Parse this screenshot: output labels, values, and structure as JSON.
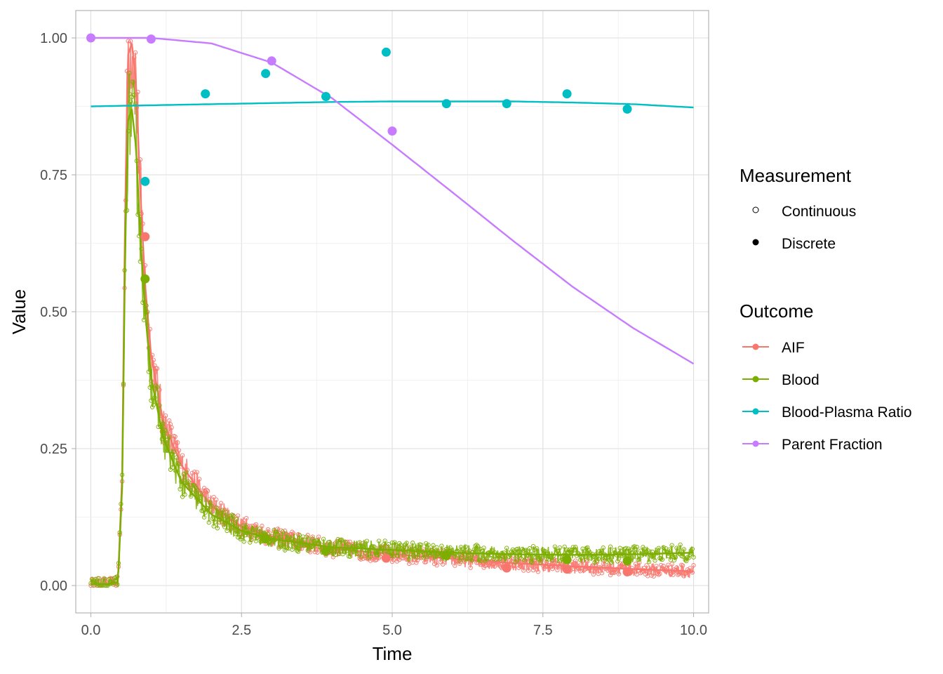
{
  "chart_data": {
    "type": "scatter",
    "xlabel": "Time",
    "ylabel": "Value",
    "xlim": [
      -0.25,
      10.25
    ],
    "ylim": [
      -0.05,
      1.05
    ],
    "x_ticks": [
      0,
      2.5,
      5,
      7.5,
      10
    ],
    "x_tick_labels": [
      "0.0",
      "2.5",
      "5.0",
      "7.5",
      "10.0"
    ],
    "y_ticks": [
      0,
      0.25,
      0.5,
      0.75,
      1
    ],
    "y_tick_labels": [
      "0.00",
      "0.25",
      "0.50",
      "0.75",
      "1.00"
    ],
    "grid": true,
    "legend_position": "right",
    "legends": {
      "measurement": {
        "title": "Measurement",
        "entries": [
          {
            "label": "Continuous",
            "shape": "open-circle"
          },
          {
            "label": "Discrete",
            "shape": "filled-circle"
          }
        ]
      },
      "outcome": {
        "title": "Outcome",
        "entries": [
          {
            "label": "AIF",
            "color": "#F8766D"
          },
          {
            "label": "Blood",
            "color": "#7CAE00"
          },
          {
            "label": "Blood-Plasma Ratio",
            "color": "#00BFC4"
          },
          {
            "label": "Parent Fraction",
            "color": "#C77CFF"
          }
        ]
      }
    },
    "series": [
      {
        "outcome": "AIF",
        "color": "#F8766D",
        "discrete_points": [
          {
            "x": 0.9,
            "y": 0.637
          },
          {
            "x": 4.9,
            "y": 0.05
          },
          {
            "x": 6.9,
            "y": 0.032
          },
          {
            "x": 7.9,
            "y": 0.03
          },
          {
            "x": 8.9,
            "y": 0.025
          }
        ],
        "continuous_curve": [
          [
            0.0,
            0.003
          ],
          [
            0.3,
            0.003
          ],
          [
            0.45,
            0.006
          ],
          [
            0.52,
            0.2
          ],
          [
            0.57,
            0.7
          ],
          [
            0.62,
            0.97
          ],
          [
            0.68,
            0.99
          ],
          [
            0.75,
            0.92
          ],
          [
            0.82,
            0.72
          ],
          [
            0.9,
            0.55
          ],
          [
            1.0,
            0.42
          ],
          [
            1.2,
            0.3
          ],
          [
            1.5,
            0.22
          ],
          [
            2.0,
            0.145
          ],
          [
            2.5,
            0.108
          ],
          [
            3.0,
            0.09
          ],
          [
            4.0,
            0.068
          ],
          [
            5.0,
            0.057
          ],
          [
            6.0,
            0.049
          ],
          [
            7.0,
            0.041
          ],
          [
            8.0,
            0.035
          ],
          [
            9.0,
            0.03
          ],
          [
            10.0,
            0.026
          ]
        ]
      },
      {
        "outcome": "Blood",
        "color": "#7CAE00",
        "discrete_points": [
          {
            "x": 0.9,
            "y": 0.56
          },
          {
            "x": 2.9,
            "y": 0.085
          },
          {
            "x": 3.9,
            "y": 0.063
          },
          {
            "x": 5.9,
            "y": 0.055
          },
          {
            "x": 7.9,
            "y": 0.047
          },
          {
            "x": 8.9,
            "y": 0.045
          }
        ],
        "continuous_curve": [
          [
            0.0,
            0.003
          ],
          [
            0.3,
            0.003
          ],
          [
            0.45,
            0.006
          ],
          [
            0.52,
            0.18
          ],
          [
            0.57,
            0.62
          ],
          [
            0.62,
            0.85
          ],
          [
            0.68,
            0.87
          ],
          [
            0.75,
            0.8
          ],
          [
            0.82,
            0.64
          ],
          [
            0.9,
            0.5
          ],
          [
            1.0,
            0.38
          ],
          [
            1.2,
            0.27
          ],
          [
            1.5,
            0.19
          ],
          [
            2.0,
            0.13
          ],
          [
            2.5,
            0.1
          ],
          [
            3.0,
            0.085
          ],
          [
            4.0,
            0.07
          ],
          [
            5.0,
            0.065
          ],
          [
            6.0,
            0.06
          ],
          [
            7.0,
            0.057
          ],
          [
            8.0,
            0.056
          ],
          [
            9.0,
            0.057
          ],
          [
            10.0,
            0.06
          ]
        ]
      },
      {
        "outcome": "Blood-Plasma Ratio",
        "color": "#00BFC4",
        "discrete_points": [
          {
            "x": 0.9,
            "y": 0.738
          },
          {
            "x": 1.9,
            "y": 0.898
          },
          {
            "x": 2.9,
            "y": 0.935
          },
          {
            "x": 3.9,
            "y": 0.893
          },
          {
            "x": 4.9,
            "y": 0.974
          },
          {
            "x": 5.9,
            "y": 0.88
          },
          {
            "x": 6.9,
            "y": 0.88
          },
          {
            "x": 7.9,
            "y": 0.898
          },
          {
            "x": 8.9,
            "y": 0.87
          }
        ],
        "fitted_curve": [
          [
            0.0,
            0.875
          ],
          [
            1.0,
            0.877
          ],
          [
            2.0,
            0.879
          ],
          [
            3.0,
            0.881
          ],
          [
            4.0,
            0.883
          ],
          [
            5.0,
            0.884
          ],
          [
            6.0,
            0.884
          ],
          [
            7.0,
            0.884
          ],
          [
            8.0,
            0.882
          ],
          [
            9.0,
            0.879
          ],
          [
            10.0,
            0.873
          ]
        ]
      },
      {
        "outcome": "Parent Fraction",
        "color": "#C77CFF",
        "discrete_points": [
          {
            "x": 0.0,
            "y": 1.0
          },
          {
            "x": 1.0,
            "y": 0.998
          },
          {
            "x": 3.0,
            "y": 0.958
          },
          {
            "x": 5.0,
            "y": 0.83
          }
        ],
        "fitted_curve": [
          [
            0.0,
            1.0
          ],
          [
            1.0,
            1.0
          ],
          [
            2.0,
            0.99
          ],
          [
            3.0,
            0.955
          ],
          [
            4.0,
            0.89
          ],
          [
            5.0,
            0.805
          ],
          [
            6.0,
            0.718
          ],
          [
            7.0,
            0.63
          ],
          [
            8.0,
            0.545
          ],
          [
            9.0,
            0.47
          ],
          [
            10.0,
            0.405
          ]
        ]
      }
    ]
  }
}
